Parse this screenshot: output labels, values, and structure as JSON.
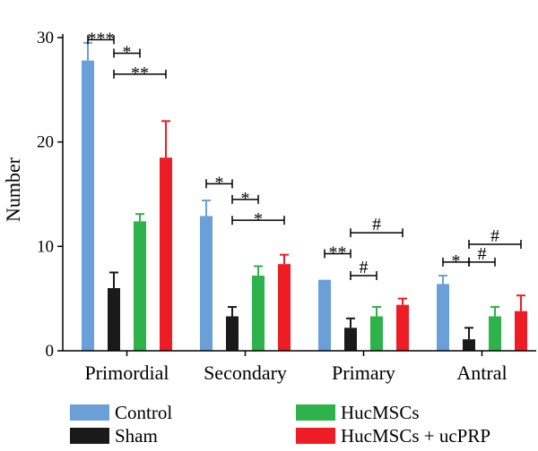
{
  "chart_data": {
    "type": "bar",
    "title": "",
    "xlabel": "",
    "ylabel": "Number",
    "ylim": [
      0,
      30
    ],
    "yticks": [
      0,
      10,
      20,
      30
    ],
    "grid": false,
    "legend_position": "bottom",
    "categories": [
      "Primordial",
      "Secondary",
      "Primary",
      "Antral"
    ],
    "series": [
      {
        "name": "Control",
        "color": "#6a9fd8",
        "values": [
          27.8,
          12.9,
          6.8,
          6.4
        ],
        "errors": [
          1.7,
          1.5,
          0,
          0.8
        ]
      },
      {
        "name": "Sham",
        "color": "#1a1a1a",
        "values": [
          6.0,
          3.3,
          2.2,
          1.1
        ],
        "errors": [
          1.5,
          0.9,
          0.9,
          1.1
        ]
      },
      {
        "name": "HucMSCs",
        "color": "#2db34a",
        "values": [
          12.4,
          7.2,
          3.3,
          3.3
        ],
        "errors": [
          0.7,
          0.9,
          0.9,
          0.9
        ]
      },
      {
        "name": "HucMSCs + ucPRP",
        "color": "#ee1c24",
        "values": [
          18.5,
          8.3,
          4.4,
          3.8
        ],
        "errors": [
          3.5,
          0.9,
          0.6,
          1.5
        ]
      }
    ],
    "annotations": [
      {
        "category": 0,
        "from": 0,
        "to": 1,
        "level": 29.8,
        "label": "***"
      },
      {
        "category": 0,
        "from": 1,
        "to": 2,
        "level": 28.5,
        "label": "*"
      },
      {
        "category": 0,
        "from": 1,
        "to": 3,
        "level": 26.5,
        "label": "**"
      },
      {
        "category": 1,
        "from": 0,
        "to": 1,
        "level": 16.0,
        "label": "*"
      },
      {
        "category": 1,
        "from": 1,
        "to": 2,
        "level": 14.5,
        "label": "*"
      },
      {
        "category": 1,
        "from": 1,
        "to": 3,
        "level": 12.5,
        "label": "*"
      },
      {
        "category": 2,
        "from": 0,
        "to": 1,
        "level": 9.3,
        "label": "**"
      },
      {
        "category": 2,
        "from": 1,
        "to": 3,
        "level": 11.3,
        "label": "#"
      },
      {
        "category": 2,
        "from": 1,
        "to": 2,
        "level": 7.2,
        "label": "#"
      },
      {
        "category": 3,
        "from": 0,
        "to": 1,
        "level": 8.5,
        "label": "*"
      },
      {
        "category": 3,
        "from": 1,
        "to": 3,
        "level": 10.2,
        "label": "#"
      },
      {
        "category": 3,
        "from": 1,
        "to": 2,
        "level": 8.5,
        "label": "#"
      }
    ]
  }
}
